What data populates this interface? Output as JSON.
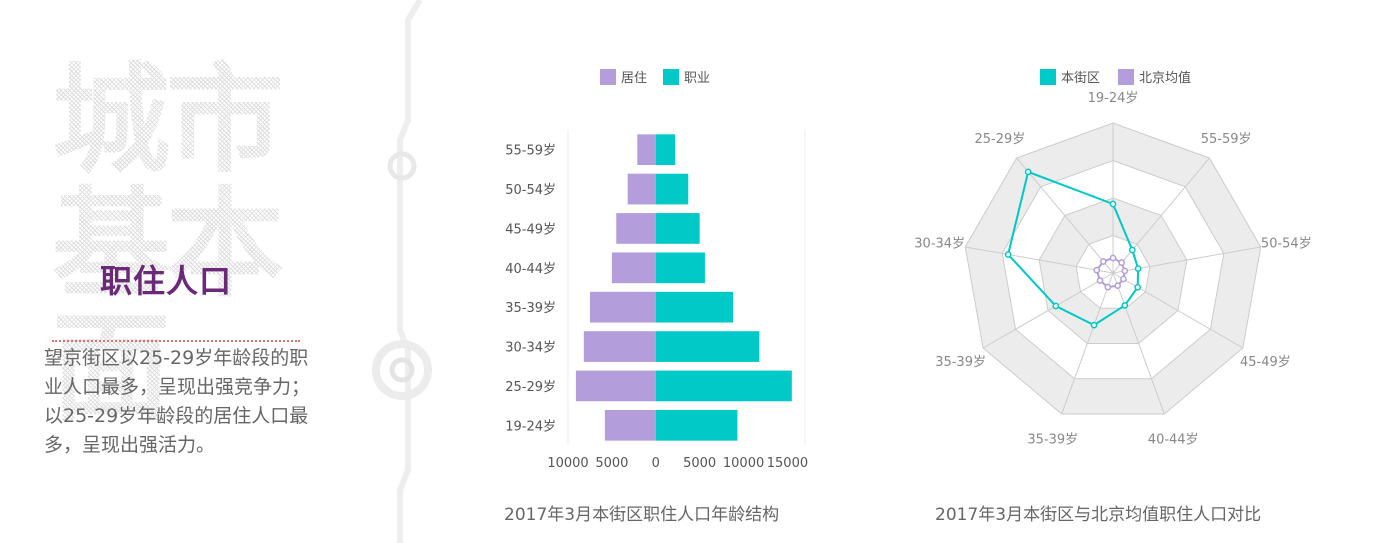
{
  "left": {
    "big_title": "城市\n基本面",
    "section_title": "职住人口",
    "description": "望京街区以25-29岁年龄段的职业人口最多，呈现出强竞争力；以25-29岁年龄段的居住人口最多，呈现出强活力。"
  },
  "colors": {
    "residence": "#b39ddb",
    "occupation": "#00c9c8",
    "beijing": "#b39ddb",
    "district": "#00c9c8"
  },
  "chart_data": [
    {
      "type": "bar",
      "orientation": "horizontal-diverging",
      "title": "2017年3月本街区职住人口年龄结构",
      "categories": [
        "19-24岁",
        "25-29岁",
        "30-34岁",
        "35-39岁",
        "40-44岁",
        "45-49岁",
        "50-54岁",
        "55-59岁"
      ],
      "series": [
        {
          "name": "居住",
          "values": [
            5800,
            9100,
            8200,
            7500,
            5000,
            4500,
            3200,
            2100
          ]
        },
        {
          "name": "职业",
          "values": [
            9300,
            15500,
            11800,
            8800,
            5600,
            5000,
            3700,
            2200
          ]
        }
      ],
      "x_ticks": [
        "10000",
        "5000",
        "0",
        "5000",
        "10000",
        "15000"
      ],
      "xlim": [
        -10000,
        17000
      ],
      "legend_position": "top-center",
      "grid": false
    },
    {
      "type": "radar",
      "title": "2017年3月本街区与北京均值职住人口对比",
      "axes": [
        "19-24岁",
        "55-59岁",
        "50-54岁",
        "45-49岁",
        "40-44岁",
        "35-39岁",
        "35-39岁",
        "30-34岁",
        "25-29岁"
      ],
      "max": 100,
      "series": [
        {
          "name": "本街区",
          "values": [
            46,
            20,
            17,
            19,
            23,
            37,
            44,
            71,
            88
          ]
        },
        {
          "name": "北京均值",
          "values": [
            10,
            9,
            8,
            8,
            9,
            10,
            10,
            11,
            10
          ]
        }
      ],
      "rings": 4,
      "shaded_rings": [
        2,
        4
      ],
      "legend_position": "top-center"
    }
  ]
}
